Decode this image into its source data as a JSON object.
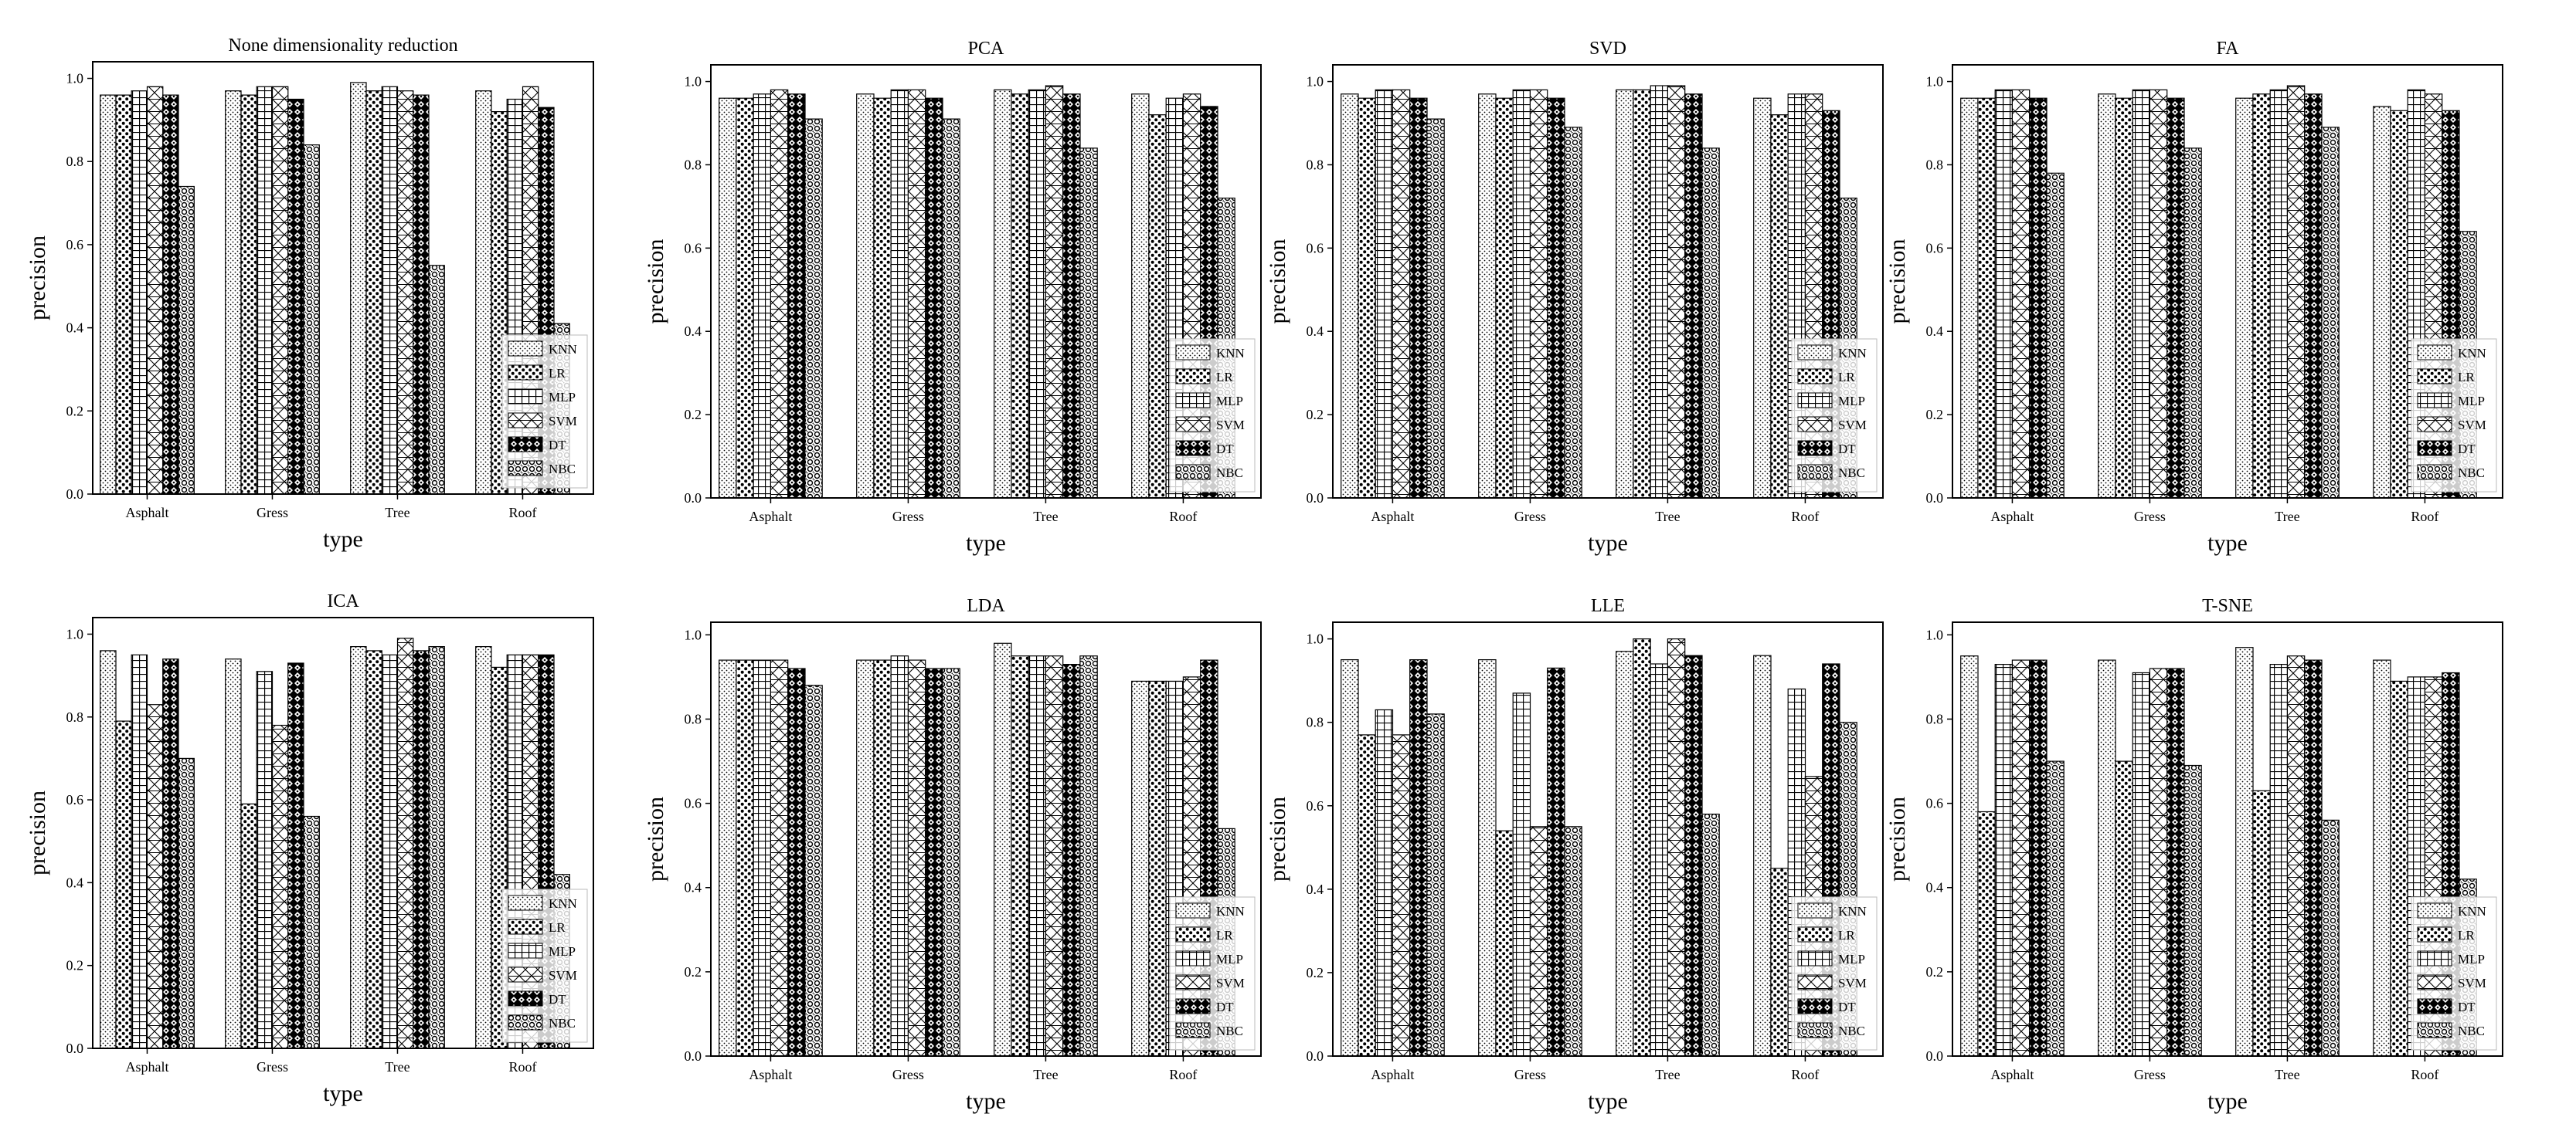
{
  "chart_data": [
    {
      "type": "bar",
      "title": "None dimensionality reduction",
      "xlabel": "type",
      "ylabel": "precision",
      "ylim": [
        0,
        1.04
      ],
      "yticks": [
        "0.0",
        "0.2",
        "0.4",
        "0.6",
        "0.8",
        "1.0"
      ],
      "categories": [
        "Asphalt",
        "Gress",
        "Tree",
        "Roof"
      ],
      "legend": "bottom-right",
      "series": [
        {
          "name": "KNN",
          "values": [
            0.96,
            0.97,
            0.99,
            0.97
          ]
        },
        {
          "name": "LR",
          "values": [
            0.96,
            0.96,
            0.97,
            0.92
          ]
        },
        {
          "name": "MLP",
          "values": [
            0.97,
            0.98,
            0.98,
            0.95
          ]
        },
        {
          "name": "SVM",
          "values": [
            0.98,
            0.98,
            0.97,
            0.98
          ]
        },
        {
          "name": "DT",
          "values": [
            0.96,
            0.95,
            0.96,
            0.93
          ]
        },
        {
          "name": "NBC",
          "values": [
            0.74,
            0.84,
            0.55,
            0.41
          ]
        }
      ]
    },
    {
      "type": "bar",
      "title": "PCA",
      "xlabel": "type",
      "ylabel": "precision",
      "ylim": [
        0,
        1.04
      ],
      "yticks": [
        "0.0",
        "0.2",
        "0.4",
        "0.6",
        "0.8",
        "1.0"
      ],
      "categories": [
        "Asphalt",
        "Gress",
        "Tree",
        "Roof"
      ],
      "legend": "bottom-right",
      "series": [
        {
          "name": "KNN",
          "values": [
            0.96,
            0.97,
            0.98,
            0.97
          ]
        },
        {
          "name": "LR",
          "values": [
            0.96,
            0.96,
            0.97,
            0.92
          ]
        },
        {
          "name": "MLP",
          "values": [
            0.97,
            0.98,
            0.98,
            0.96
          ]
        },
        {
          "name": "SVM",
          "values": [
            0.98,
            0.98,
            0.99,
            0.97
          ]
        },
        {
          "name": "DT",
          "values": [
            0.97,
            0.96,
            0.97,
            0.94
          ]
        },
        {
          "name": "NBC",
          "values": [
            0.91,
            0.91,
            0.84,
            0.72
          ]
        }
      ]
    },
    {
      "type": "bar",
      "title": "SVD",
      "xlabel": "type",
      "ylabel": "precision",
      "ylim": [
        0,
        1.04
      ],
      "yticks": [
        "0.0",
        "0.2",
        "0.4",
        "0.6",
        "0.8",
        "1.0"
      ],
      "categories": [
        "Asphalt",
        "Gress",
        "Tree",
        "Roof"
      ],
      "legend": "bottom-right",
      "series": [
        {
          "name": "KNN",
          "values": [
            0.97,
            0.97,
            0.98,
            0.96
          ]
        },
        {
          "name": "LR",
          "values": [
            0.96,
            0.96,
            0.98,
            0.92
          ]
        },
        {
          "name": "MLP",
          "values": [
            0.98,
            0.98,
            0.99,
            0.97
          ]
        },
        {
          "name": "SVM",
          "values": [
            0.98,
            0.98,
            0.99,
            0.97
          ]
        },
        {
          "name": "DT",
          "values": [
            0.96,
            0.96,
            0.97,
            0.93
          ]
        },
        {
          "name": "NBC",
          "values": [
            0.91,
            0.89,
            0.84,
            0.72
          ]
        }
      ]
    },
    {
      "type": "bar",
      "title": "FA",
      "xlabel": "type",
      "ylabel": "precision",
      "ylim": [
        0,
        1.04
      ],
      "yticks": [
        "0.0",
        "0.2",
        "0.4",
        "0.6",
        "0.8",
        "1.0"
      ],
      "categories": [
        "Asphalt",
        "Gress",
        "Tree",
        "Roof"
      ],
      "legend": "bottom-right",
      "series": [
        {
          "name": "KNN",
          "values": [
            0.96,
            0.97,
            0.96,
            0.94
          ]
        },
        {
          "name": "LR",
          "values": [
            0.96,
            0.96,
            0.97,
            0.93
          ]
        },
        {
          "name": "MLP",
          "values": [
            0.98,
            0.98,
            0.98,
            0.98
          ]
        },
        {
          "name": "SVM",
          "values": [
            0.98,
            0.98,
            0.99,
            0.97
          ]
        },
        {
          "name": "DT",
          "values": [
            0.96,
            0.96,
            0.97,
            0.93
          ]
        },
        {
          "name": "NBC",
          "values": [
            0.78,
            0.84,
            0.89,
            0.64
          ]
        }
      ]
    },
    {
      "type": "bar",
      "title": "ICA",
      "xlabel": "type",
      "ylabel": "precision",
      "ylim": [
        0,
        1.04
      ],
      "yticks": [
        "0.0",
        "0.2",
        "0.4",
        "0.6",
        "0.8",
        "1.0"
      ],
      "categories": [
        "Asphalt",
        "Gress",
        "Tree",
        "Roof"
      ],
      "legend": "bottom-right",
      "series": [
        {
          "name": "KNN",
          "values": [
            0.96,
            0.94,
            0.97,
            0.97
          ]
        },
        {
          "name": "LR",
          "values": [
            0.79,
            0.59,
            0.96,
            0.92
          ]
        },
        {
          "name": "MLP",
          "values": [
            0.95,
            0.91,
            0.95,
            0.95
          ]
        },
        {
          "name": "SVM",
          "values": [
            0.83,
            0.78,
            0.99,
            0.95
          ]
        },
        {
          "name": "DT",
          "values": [
            0.94,
            0.93,
            0.96,
            0.95
          ]
        },
        {
          "name": "NBC",
          "values": [
            0.7,
            0.56,
            0.97,
            0.42
          ]
        }
      ]
    },
    {
      "type": "bar",
      "title": "LDA",
      "xlabel": "type",
      "ylabel": "precision",
      "ylim": [
        0,
        1.03
      ],
      "yticks": [
        "0.0",
        "0.2",
        "0.4",
        "0.6",
        "0.8",
        "1.0"
      ],
      "categories": [
        "Asphalt",
        "Gress",
        "Tree",
        "Roof"
      ],
      "legend": "bottom-right",
      "series": [
        {
          "name": "KNN",
          "values": [
            0.94,
            0.94,
            0.98,
            0.89
          ]
        },
        {
          "name": "LR",
          "values": [
            0.94,
            0.94,
            0.95,
            0.89
          ]
        },
        {
          "name": "MLP",
          "values": [
            0.94,
            0.95,
            0.95,
            0.89
          ]
        },
        {
          "name": "SVM",
          "values": [
            0.94,
            0.94,
            0.95,
            0.9
          ]
        },
        {
          "name": "DT",
          "values": [
            0.92,
            0.92,
            0.93,
            0.94
          ]
        },
        {
          "name": "NBC",
          "values": [
            0.88,
            0.92,
            0.95,
            0.54
          ]
        }
      ]
    },
    {
      "type": "bar",
      "title": "LLE",
      "xlabel": "type",
      "ylabel": "precision",
      "ylim": [
        0,
        1.04
      ],
      "yticks": [
        "0.0",
        "0.2",
        "0.4",
        "0.6",
        "0.8",
        "1.0"
      ],
      "categories": [
        "Asphalt",
        "Gress",
        "Tree",
        "Roof"
      ],
      "legend": "bottom-right",
      "series": [
        {
          "name": "KNN",
          "values": [
            0.95,
            0.95,
            0.97,
            0.96
          ]
        },
        {
          "name": "LR",
          "values": [
            0.77,
            0.54,
            1.0,
            0.45
          ]
        },
        {
          "name": "MLP",
          "values": [
            0.83,
            0.87,
            0.94,
            0.88
          ]
        },
        {
          "name": "SVM",
          "values": [
            0.77,
            0.55,
            1.0,
            0.67
          ]
        },
        {
          "name": "DT",
          "values": [
            0.95,
            0.93,
            0.96,
            0.94
          ]
        },
        {
          "name": "NBC",
          "values": [
            0.82,
            0.55,
            0.58,
            0.8
          ]
        }
      ]
    },
    {
      "type": "bar",
      "title": "T-SNE",
      "xlabel": "type",
      "ylabel": "precision",
      "ylim": [
        0,
        1.03
      ],
      "yticks": [
        "0.0",
        "0.2",
        "0.4",
        "0.6",
        "0.8",
        "1.0"
      ],
      "categories": [
        "Asphalt",
        "Gress",
        "Tree",
        "Roof"
      ],
      "legend": "bottom-right",
      "series": [
        {
          "name": "KNN",
          "values": [
            0.95,
            0.94,
            0.97,
            0.94
          ]
        },
        {
          "name": "LR",
          "values": [
            0.58,
            0.7,
            0.63,
            0.89
          ]
        },
        {
          "name": "MLP",
          "values": [
            0.93,
            0.91,
            0.93,
            0.9
          ]
        },
        {
          "name": "SVM",
          "values": [
            0.94,
            0.92,
            0.95,
            0.9
          ]
        },
        {
          "name": "DT",
          "values": [
            0.94,
            0.92,
            0.94,
            0.91
          ]
        },
        {
          "name": "NBC",
          "values": [
            0.7,
            0.69,
            0.56,
            0.42
          ]
        }
      ]
    }
  ]
}
